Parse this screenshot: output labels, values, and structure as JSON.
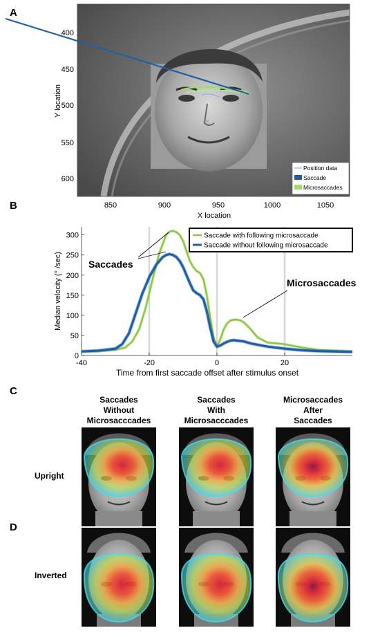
{
  "panels": {
    "a": "A",
    "b": "B",
    "c": "C",
    "d": "D"
  },
  "panel_a": {
    "xlabel": "X location",
    "ylabel": "Y location",
    "xticks": [
      "850",
      "900",
      "950",
      "1000",
      "1050"
    ],
    "yticks": [
      "400",
      "450",
      "500",
      "550",
      "600"
    ],
    "legend": [
      "Position data",
      "Saccade",
      "Microsaccades"
    ]
  },
  "panel_b": {
    "xlabel": "Time from first saccade offset after stimulus onset",
    "ylabel": "Median velocity (° /sec)",
    "xticks": [
      "-40",
      "-20",
      "0",
      "20"
    ],
    "yticks": [
      "0",
      "50",
      "100",
      "150",
      "200",
      "250",
      "300"
    ],
    "annot_saccades": "Saccades",
    "annot_microsaccades": "Microsaccades"
  },
  "chart_data": {
    "type": "line",
    "xlabel": "Time from first saccade offset after stimulus onset",
    "ylabel": "Median velocity (° /sec)",
    "xlim": [
      -40,
      40
    ],
    "ylim": [
      0,
      320
    ],
    "grid": "vertical",
    "legend": "top-right",
    "series": [
      {
        "name": "Saccade with following microsaccade",
        "color": "#8dc63f",
        "x": [
          -40,
          -35,
          -30,
          -27,
          -25,
          -23,
          -21,
          -19,
          -17,
          -15,
          -14,
          -13,
          -12,
          -11,
          -10,
          -9,
          -8,
          -7,
          -6,
          -5,
          -4,
          -3,
          -2,
          -1,
          0,
          1,
          2,
          3,
          4,
          5,
          6,
          7,
          8,
          10,
          12,
          15,
          18,
          20,
          25,
          30,
          35,
          40
        ],
        "values": [
          10,
          11,
          14,
          20,
          35,
          65,
          120,
          190,
          255,
          300,
          308,
          310,
          307,
          300,
          285,
          260,
          235,
          220,
          210,
          205,
          190,
          150,
          95,
          45,
          22,
          40,
          65,
          80,
          87,
          89,
          89,
          87,
          82,
          65,
          45,
          32,
          30,
          28,
          20,
          14,
          12,
          10
        ]
      },
      {
        "name": "Saccade without following microsaccade",
        "color": "#1f5fa8",
        "x": [
          -40,
          -35,
          -30,
          -28,
          -26,
          -24,
          -22,
          -20,
          -18,
          -16,
          -15,
          -14,
          -13,
          -12,
          -11,
          -10,
          -9,
          -8,
          -7,
          -6,
          -5,
          -4,
          -3,
          -2,
          -1,
          0,
          1,
          2,
          3,
          4,
          5,
          6,
          8,
          10,
          15,
          20,
          25,
          30,
          40
        ],
        "values": [
          10,
          12,
          17,
          28,
          55,
          105,
          155,
          195,
          225,
          245,
          250,
          252,
          250,
          245,
          235,
          220,
          200,
          180,
          162,
          155,
          150,
          140,
          110,
          70,
          35,
          22,
          25,
          30,
          34,
          37,
          38,
          37,
          35,
          30,
          22,
          17,
          13,
          11,
          9
        ]
      }
    ]
  },
  "panel_cd": {
    "col1": [
      "Saccades",
      "Without",
      "Microsacccades"
    ],
    "col2": [
      "Saccades",
      "With",
      "Microsacccades"
    ],
    "col3": [
      "Microsaccades",
      "After",
      "Saccades"
    ],
    "row1": "Upright",
    "row2": "Inverted"
  },
  "colors": {
    "green": "#8dc63f",
    "blue": "#1f5fa8",
    "heat_cyan": "#4ee0ea",
    "heat_red": "#e8202a"
  }
}
